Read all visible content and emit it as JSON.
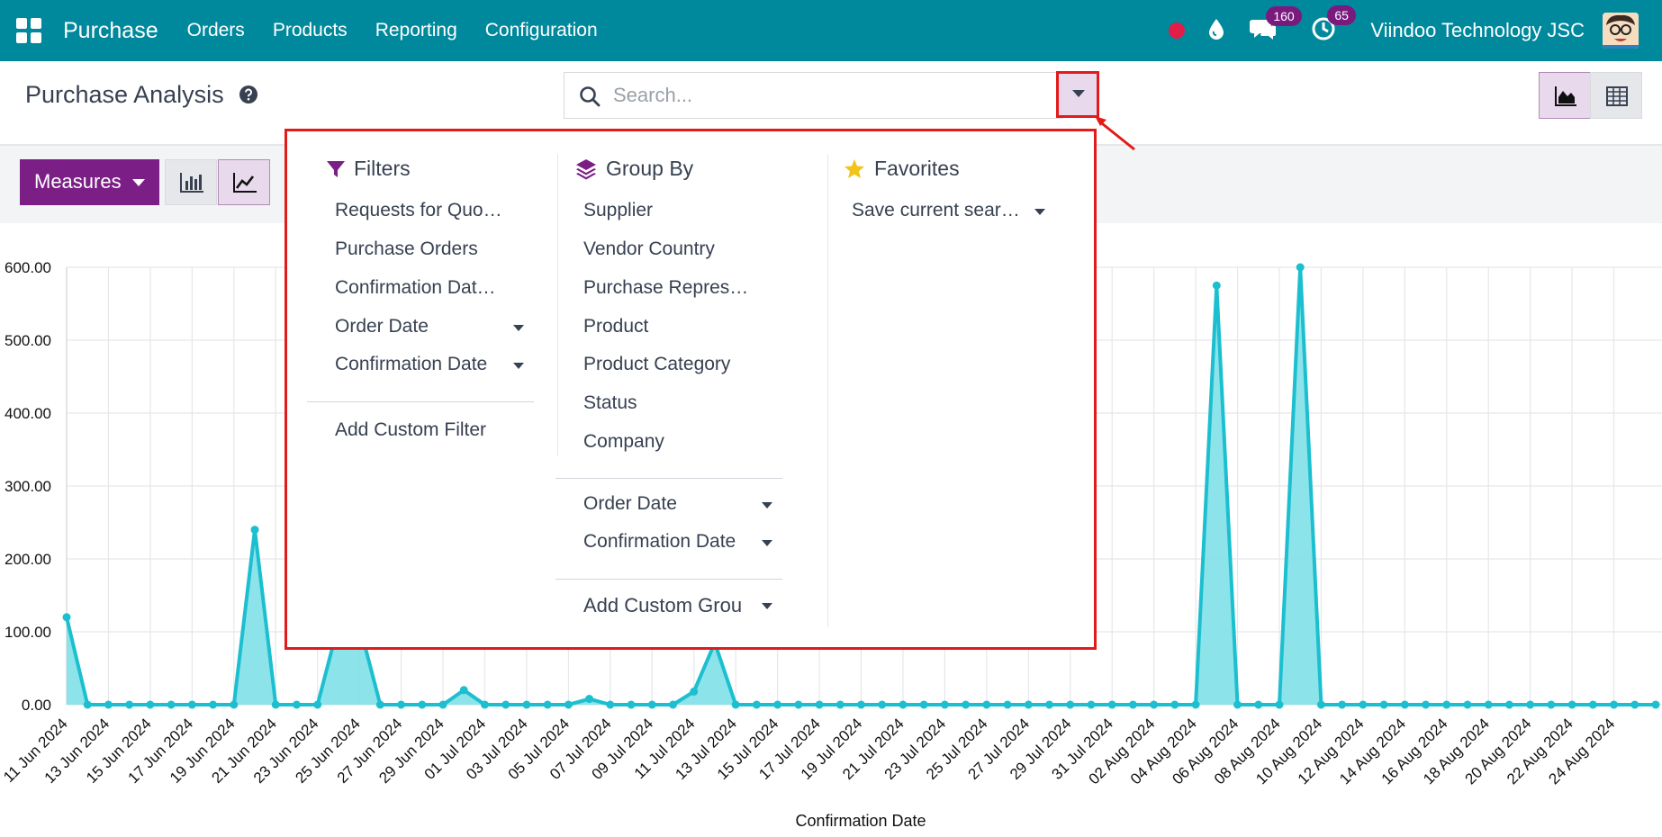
{
  "navbar": {
    "app_name": "Purchase",
    "menu": [
      "Orders",
      "Products",
      "Reporting",
      "Configuration"
    ],
    "messages_count": "160",
    "activities_count": "65",
    "company": "Viindoo Technology JSC"
  },
  "control_panel": {
    "title": "Purchase Analysis",
    "search_placeholder": "Search...",
    "measures_label": "Measures"
  },
  "search_panel": {
    "filters": {
      "title": "Filters",
      "items": [
        "Requests for Quo…",
        "Purchase Orders",
        "Confirmation Dat…",
        "Order Date",
        "Confirmation Date"
      ],
      "custom": "Add Custom Filter"
    },
    "group_by": {
      "title": "Group By",
      "items": [
        "Supplier",
        "Vendor Country",
        "Purchase Repres…",
        "Product",
        "Product Category",
        "Status",
        "Company"
      ],
      "date_items": [
        "Order Date",
        "Confirmation Date"
      ],
      "custom": "Add Custom Grou"
    },
    "favorites": {
      "title": "Favorites",
      "save": "Save current sear…"
    }
  },
  "colors": {
    "navbar": "#00899c",
    "primary": "#7b1f86",
    "series_line": "#1cbfcf",
    "series_fill": "#7fe0e8",
    "highlight": "#e21a1a"
  },
  "chart_data": {
    "type": "area",
    "xlabel": "Confirmation Date",
    "ylabel": "",
    "ylim": [
      0,
      600
    ],
    "y_ticks": [
      "0.00",
      "100.00",
      "200.00",
      "300.00",
      "400.00",
      "500.00",
      "600.00"
    ],
    "x_tick_labels": [
      "11 Jun 2024",
      "13 Jun 2024",
      "15 Jun 2024",
      "17 Jun 2024",
      "19 Jun 2024",
      "21 Jun 2024",
      "23 Jun 2024",
      "25 Jun 2024",
      "27 Jun 2024",
      "29 Jun 2024",
      "01 Jul 2024",
      "03 Jul 2024",
      "05 Jul 2024",
      "07 Jul 2024",
      "09 Jul 2024",
      "11 Jul 2024",
      "13 Jul 2024",
      "15 Jul 2024",
      "17 Jul 2024",
      "19 Jul 2024",
      "21 Jul 2024",
      "23 Jul 2024",
      "25 Jul 2024",
      "27 Jul 2024",
      "29 Jul 2024",
      "31 Jul 2024",
      "02 Aug 2024",
      "04 Aug 2024",
      "06 Aug 2024",
      "08 Aug 2024",
      "10 Aug 2024",
      "12 Aug 2024",
      "14 Aug 2024",
      "16 Aug 2024",
      "18 Aug 2024",
      "20 Aug 2024",
      "22 Aug 2024",
      "24 Aug 2024"
    ],
    "values": [
      120,
      0,
      0,
      0,
      0,
      0,
      0,
      0,
      0,
      240,
      0,
      0,
      0,
      110,
      110,
      0,
      0,
      0,
      0,
      20,
      0,
      0,
      0,
      0,
      0,
      8,
      0,
      0,
      0,
      0,
      18,
      85,
      0,
      0,
      0,
      0,
      0,
      0,
      0,
      0,
      0,
      0,
      0,
      0,
      0,
      0,
      0,
      0,
      0,
      0,
      0,
      0,
      0,
      0,
      0,
      575,
      0,
      0,
      0,
      600,
      0,
      0,
      0,
      0,
      0,
      0,
      0,
      0,
      0,
      0,
      0,
      0,
      0,
      0,
      0,
      0,
      0
    ]
  }
}
